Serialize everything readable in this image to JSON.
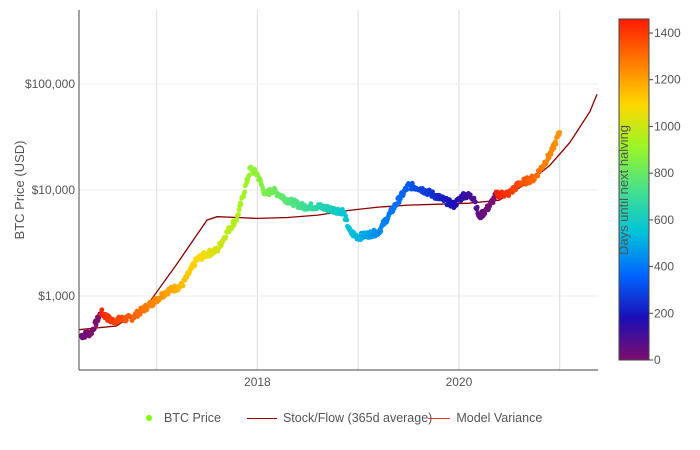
{
  "chart_data": {
    "type": "scatter",
    "title": "",
    "ylabel": "BTC Price (USD)",
    "xlabel": "",
    "yscale": "log",
    "ylim": [
      200,
      500000
    ],
    "xlim": [
      2016.23,
      2021.38
    ],
    "x_ticks": [
      {
        "value": 2018,
        "label": "2018"
      },
      {
        "value": 2020,
        "label": "2020"
      }
    ],
    "x_grid_years": [
      2017,
      2018,
      2019,
      2020,
      2021
    ],
    "y_ticks": [
      {
        "value": 1000,
        "label": "$1,000"
      },
      {
        "value": 10000,
        "label": "$10,000"
      },
      {
        "value": 100000,
        "label": "$100,000"
      }
    ],
    "colorbar": {
      "label": "Days until next halving",
      "min": 0,
      "max": 1460,
      "ticks": [
        0,
        200,
        400,
        600,
        800,
        1000,
        1200,
        1400
      ],
      "colorscale": [
        "#7f0d6e",
        "#1a0fb8",
        "#0066ff",
        "#00c3d9",
        "#47e08c",
        "#9bf526",
        "#ffd700",
        "#ff7a00",
        "#ff1a00"
      ]
    },
    "series": [
      {
        "name": "BTC Price",
        "kind": "markers",
        "color": "#7CFC00",
        "points": [
          [
            2016.25,
            420,
            35
          ],
          [
            2016.35,
            450,
            5
          ],
          [
            2016.45,
            700,
            1440
          ],
          [
            2016.55,
            580,
            1400
          ],
          [
            2016.75,
            620,
            1330
          ],
          [
            2016.95,
            850,
            1260
          ],
          [
            2017.1,
            1100,
            1210
          ],
          [
            2017.25,
            1250,
            1150
          ],
          [
            2017.4,
            2200,
            1100
          ],
          [
            2017.5,
            2500,
            1060
          ],
          [
            2017.6,
            2700,
            1020
          ],
          [
            2017.7,
            4000,
            980
          ],
          [
            2017.8,
            5500,
            950
          ],
          [
            2017.93,
            16000,
            900
          ],
          [
            2018.0,
            14000,
            880
          ],
          [
            2018.08,
            9000,
            850
          ],
          [
            2018.15,
            10000,
            820
          ],
          [
            2018.3,
            8000,
            770
          ],
          [
            2018.45,
            7000,
            720
          ],
          [
            2018.6,
            7000,
            660
          ],
          [
            2018.75,
            6500,
            610
          ],
          [
            2018.85,
            6300,
            570
          ],
          [
            2018.92,
            4000,
            550
          ],
          [
            2019.0,
            3600,
            520
          ],
          [
            2019.2,
            4000,
            440
          ],
          [
            2019.4,
            8000,
            380
          ],
          [
            2019.5,
            11000,
            340
          ],
          [
            2019.6,
            10500,
            300
          ],
          [
            2019.8,
            8500,
            230
          ],
          [
            2019.95,
            7200,
            180
          ],
          [
            2020.05,
            9000,
            140
          ],
          [
            2020.15,
            8500,
            90
          ],
          [
            2020.2,
            5500,
            60
          ],
          [
            2020.3,
            7000,
            20
          ],
          [
            2020.37,
            9000,
            1455
          ],
          [
            2020.5,
            9300,
            1410
          ],
          [
            2020.6,
            11500,
            1370
          ],
          [
            2020.75,
            13000,
            1310
          ],
          [
            2020.85,
            18000,
            1270
          ],
          [
            2020.92,
            23000,
            1250
          ],
          [
            2021.0,
            35000,
            1230
          ]
        ]
      },
      {
        "name": "Stock/Flow (365d average)",
        "kind": "line",
        "color": "#8b0000",
        "x": [
          2016.23,
          2016.6,
          2016.9,
          2017.2,
          2017.5,
          2017.6,
          2017.8,
          2018.0,
          2018.3,
          2018.6,
          2018.9,
          2019.2,
          2019.5,
          2019.8,
          2020.1,
          2020.4,
          2020.7,
          2020.9,
          2021.1,
          2021.3,
          2021.37
        ],
        "y": [
          480,
          520,
          800,
          2000,
          5200,
          5600,
          5500,
          5400,
          5500,
          5800,
          6400,
          6900,
          7200,
          7350,
          7500,
          8000,
          12000,
          17000,
          28000,
          55000,
          80000
        ]
      },
      {
        "name": "Model Variance",
        "kind": "line",
        "color": "#e8312a"
      }
    ]
  }
}
